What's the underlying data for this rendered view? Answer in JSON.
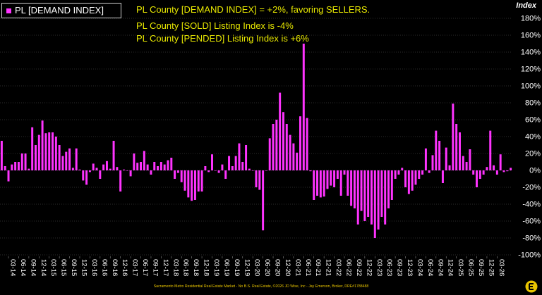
{
  "legend": {
    "label": "PL [DEMAND INDEX]",
    "color": "#ff33ff"
  },
  "annotations": [
    "PL County [DEMAND INDEX] = +2%, favoring SELLERS.",
    "PL County [SOLD] Listing Index is -4%",
    "PL County [PENDED] Listing Index is +6%"
  ],
  "footer": "Sacramento Metro Residential Real Estate Market - No B.S. Real Estate, ©2026 JD Wise, Inc - Jay Emerson, Broker, DRE#1788488",
  "colors": {
    "background": "#000000",
    "bars": "#ff33ff",
    "grid": "#5a5a5a",
    "annotation": "#e8e800",
    "text": "#ffffff"
  },
  "chart_data": {
    "type": "bar",
    "ylabel": "Index",
    "ylim": [
      -100,
      180
    ],
    "yticks": [
      -100,
      -80,
      -60,
      -40,
      -20,
      0,
      20,
      40,
      60,
      80,
      100,
      120,
      140,
      160,
      180
    ],
    "ytick_format": "percent",
    "y_axis_side": "right",
    "grid": "horizontal dotted",
    "legend_position": "top-left",
    "start_month": "01-14",
    "xticks": [
      "03-14",
      "06-14",
      "09-14",
      "12-14",
      "03-15",
      "06-15",
      "09-15",
      "12-15",
      "03-16",
      "06-16",
      "09-16",
      "12-16",
      "03-17",
      "06-17",
      "09-17",
      "12-17",
      "03-18",
      "06-18",
      "09-18",
      "12-18",
      "03-19",
      "06-19",
      "09-19",
      "12-19",
      "03-20",
      "06-20",
      "09-20",
      "12-20",
      "03-21",
      "06-21",
      "09-21",
      "12-21",
      "03-22",
      "06-22",
      "09-22",
      "12-22",
      "03-23",
      "06-23",
      "09-23",
      "12-23",
      "03-24",
      "06-24",
      "09-24",
      "12-24",
      "03-25",
      "06-25",
      "09-25",
      "12-25",
      "03-26"
    ],
    "series": [
      {
        "name": "PL [DEMAND INDEX]",
        "values": [
          35,
          5,
          -13,
          7,
          10,
          10,
          20,
          20,
          2,
          51,
          30,
          42,
          59,
          44,
          45,
          45,
          40,
          30,
          17,
          22,
          26,
          3,
          26,
          1,
          -12,
          -17,
          -2,
          8,
          3,
          -10,
          7,
          11,
          2,
          35,
          4,
          -25,
          1,
          0,
          -7,
          20,
          9,
          10,
          23,
          7,
          -5,
          10,
          5,
          10,
          7,
          12,
          15,
          -10,
          -3,
          -14,
          -24,
          -32,
          -36,
          -35,
          -25,
          -25,
          5,
          -2,
          19,
          0,
          -3,
          7,
          -10,
          17,
          5,
          17,
          32,
          10,
          30,
          2,
          0,
          -20,
          -23,
          -71,
          0,
          38,
          55,
          60,
          92,
          69,
          55,
          42,
          32,
          21,
          64,
          150,
          62,
          -1,
          -35,
          -30,
          -32,
          -31,
          -22,
          -18,
          -20,
          -10,
          -30,
          -5,
          -30,
          -42,
          -45,
          -64,
          -48,
          -60,
          -55,
          -64,
          -80,
          -70,
          -55,
          -64,
          -45,
          -35,
          -10,
          -5,
          3,
          -20,
          -28,
          -24,
          -17,
          -10,
          -5,
          26,
          -3,
          18,
          47,
          35,
          -15,
          27,
          6,
          79,
          55,
          45,
          17,
          10,
          25,
          -5,
          -20,
          -10,
          -5,
          4,
          47,
          6,
          -5,
          19,
          -2,
          -1,
          3
        ]
      }
    ]
  }
}
